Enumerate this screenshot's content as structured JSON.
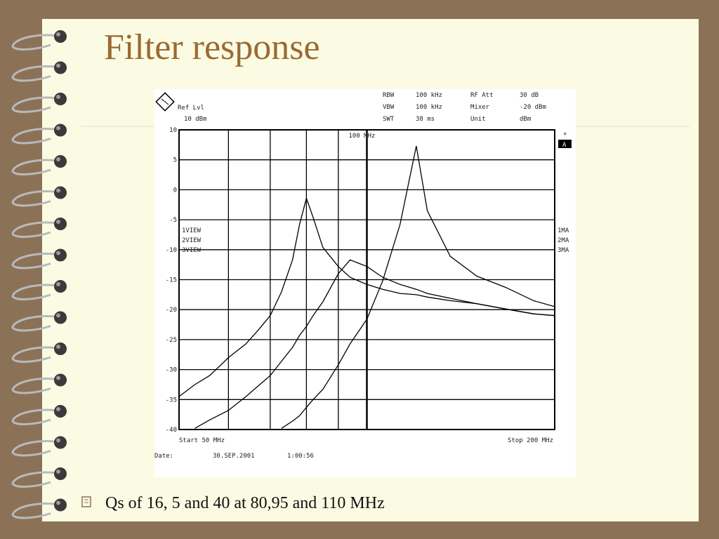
{
  "slide": {
    "title": "Filter response",
    "bullet": "Qs of 16, 5 and 40 at 80,95 and 110 MHz"
  },
  "instrument": {
    "ref_level_label": "Ref Lvl",
    "ref_level": "10 dBm",
    "settings": [
      [
        "RBW",
        "100 kHz",
        "RF Att",
        "30 dB"
      ],
      [
        "VBW",
        "100 kHz",
        "Mixer",
        "-20 dBm"
      ],
      [
        "SWT",
        "38 ms",
        "Unit",
        "dBm"
      ]
    ],
    "trace_modes": [
      "1MA",
      "2MA",
      "3MA"
    ],
    "flag": "*",
    "screen": "A",
    "start": "Start 50 MHz",
    "stop": "Stop 200 MHz",
    "date_label": "Date:",
    "date": "30.SEP.2001",
    "time": "1:00:56"
  },
  "chart_data": {
    "type": "line",
    "x": [
      50,
      53,
      56,
      60,
      64,
      67,
      70,
      73,
      76,
      78,
      80,
      82,
      85,
      90,
      94,
      100,
      106,
      113,
      120,
      125,
      136,
      150,
      167,
      185,
      200
    ],
    "series": [
      {
        "name": "1VIEW",
        "color": "#000000",
        "values": [
          -34.5,
          -32.5,
          -31,
          -28,
          -25.7,
          -23.4,
          -21,
          -17,
          -11.7,
          -5.8,
          -1.4,
          -4.6,
          -9.6,
          -12.8,
          -14.6,
          -15.8,
          -16.6,
          -17.3,
          -17.5,
          -17.9,
          -18.5,
          -19,
          -19.9,
          -20.7,
          -21
        ]
      },
      {
        "name": "2VIEW",
        "color": "#000000",
        "values": [
          null,
          -39.8,
          -38.4,
          -36.8,
          -34.5,
          -32.7,
          -31,
          -28.6,
          -26.3,
          -24.3,
          -22.8,
          -21,
          -18.7,
          -14,
          -11.7,
          -12.8,
          -14.6,
          -15.8,
          -16.6,
          -17.3,
          -18.1,
          -19,
          -19.9,
          -20.7,
          -21
        ]
      },
      {
        "name": "3VIEW",
        "color": "#000000",
        "values": [
          null,
          null,
          null,
          null,
          null,
          null,
          null,
          -39.8,
          -38.6,
          -37.7,
          -36.3,
          -35,
          -33.3,
          -29.2,
          -25.7,
          -21.6,
          -15.2,
          -5.8,
          7.3,
          -3.5,
          -11.1,
          -14.4,
          -16.3,
          -18.5,
          -19.5
        ]
      }
    ],
    "xlim": [
      50,
      200
    ],
    "xscale": "log",
    "xticks": [
      50,
      60,
      70,
      80,
      90,
      100,
      200
    ],
    "ylim": [
      -40,
      10
    ],
    "yticks": [
      10,
      5,
      0,
      -5,
      -10,
      -15,
      -20,
      -25,
      -30,
      -35,
      -40
    ],
    "grid": true,
    "marker": {
      "value": 100,
      "label": "100 MHz"
    }
  }
}
